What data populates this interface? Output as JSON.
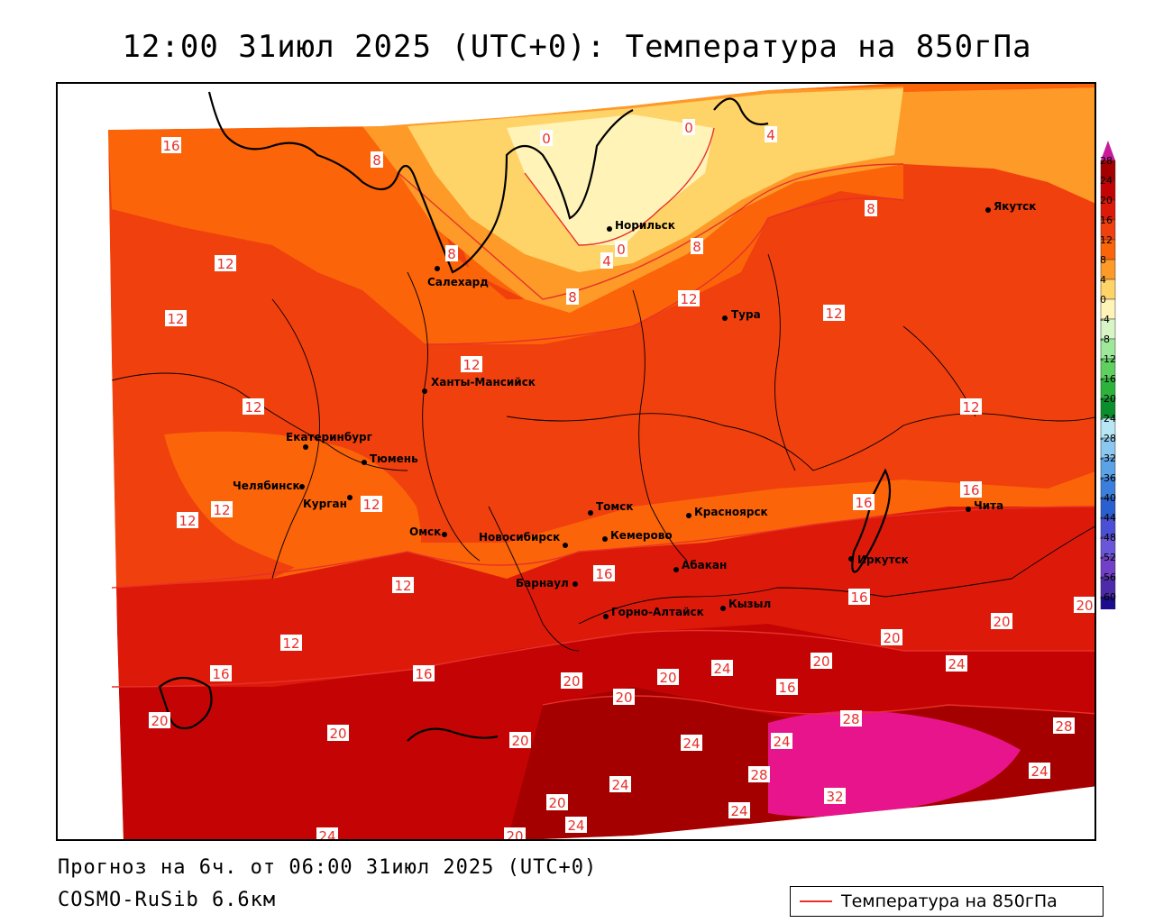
{
  "title": "12:00 31июл 2025 (UTC+0): Температура на 850гПа",
  "footer": {
    "forecast": "Прогноз на 6ч. от 06:00 31июл 2025 (UTC+0)",
    "model": "COSMO-RuSib 6.6км"
  },
  "legend": {
    "label": "Температура на 850гПа",
    "line_color": "#e8302a"
  },
  "colors": {
    "band_28": "#a50000",
    "band_24": "#c40404",
    "band_20": "#dd1a0a",
    "band_16": "#f0400e",
    "band_12": "#fb6408",
    "band_8": "#fd9a28",
    "band_4": "#fed368",
    "band_0": "#fff3b8",
    "hot_32": "#e8148c",
    "contour": "#e8302a",
    "border": "#000000"
  },
  "color_scale": {
    "labels": [
      "28",
      "24",
      "20",
      "16",
      "12",
      "8",
      "4",
      "0",
      "-4",
      "-8",
      "-12",
      "-16",
      "-20",
      "-24",
      "-28",
      "-32",
      "-36",
      "-40",
      "-44",
      "-48",
      "-52",
      "-56",
      "-60"
    ],
    "colors": [
      "#a50000",
      "#c40404",
      "#dd1a0a",
      "#f0400e",
      "#fb6408",
      "#fd9a28",
      "#fed368",
      "#fff3b8",
      "#d7f5c5",
      "#9ee89a",
      "#5fd060",
      "#2db33c",
      "#0a8f2c",
      "#b8e6f5",
      "#8cc7ef",
      "#5aa3e6",
      "#3a7fdb",
      "#2a5fd0",
      "#4a4fd6",
      "#6a56d8",
      "#7240c8",
      "#4c2aa8",
      "#1b0d8e"
    ],
    "top_color": "#c81a9a"
  },
  "cities": [
    {
      "name": "Норильск"
    },
    {
      "name": "Якутск"
    },
    {
      "name": "Салехард"
    },
    {
      "name": "Тура"
    },
    {
      "name": "Ханты-Мансийск"
    },
    {
      "name": "Екатеринбург"
    },
    {
      "name": "Тюмень"
    },
    {
      "name": "Челябинск"
    },
    {
      "name": "Курган"
    },
    {
      "name": "Томск"
    },
    {
      "name": "Красноярск"
    },
    {
      "name": "Омск"
    },
    {
      "name": "Новосибирск"
    },
    {
      "name": "Кемерово"
    },
    {
      "name": "Чита"
    },
    {
      "name": "Иркутск"
    },
    {
      "name": "Абакан"
    },
    {
      "name": "Барнаул"
    },
    {
      "name": "Кызыл"
    },
    {
      "name": "Горно-Алтайск"
    }
  ],
  "contour_labels": [
    {
      "text": "16"
    },
    {
      "text": "8"
    },
    {
      "text": "0"
    },
    {
      "text": "0"
    },
    {
      "text": "4"
    },
    {
      "text": "8"
    },
    {
      "text": "8"
    },
    {
      "text": "4"
    },
    {
      "text": "0"
    },
    {
      "text": "8"
    },
    {
      "text": "12"
    },
    {
      "text": "12"
    },
    {
      "text": "12"
    },
    {
      "text": "12"
    },
    {
      "text": "12"
    },
    {
      "text": "12"
    },
    {
      "text": "12"
    },
    {
      "text": "12"
    },
    {
      "text": "12"
    },
    {
      "text": "12"
    },
    {
      "text": "12"
    },
    {
      "text": "12"
    },
    {
      "text": "16"
    },
    {
      "text": "16"
    },
    {
      "text": "16"
    },
    {
      "text": "16"
    },
    {
      "text": "16"
    },
    {
      "text": "16"
    },
    {
      "text": "16"
    },
    {
      "text": "20"
    },
    {
      "text": "20"
    },
    {
      "text": "20"
    },
    {
      "text": "20"
    },
    {
      "text": "20"
    },
    {
      "text": "20"
    },
    {
      "text": "20"
    },
    {
      "text": "20"
    },
    {
      "text": "20"
    },
    {
      "text": "20"
    },
    {
      "text": "20"
    },
    {
      "text": "24"
    },
    {
      "text": "24"
    },
    {
      "text": "24"
    },
    {
      "text": "24"
    },
    {
      "text": "24"
    },
    {
      "text": "24"
    },
    {
      "text": "24"
    },
    {
      "text": "24"
    },
    {
      "text": "24"
    },
    {
      "text": "28"
    },
    {
      "text": "28"
    },
    {
      "text": "28"
    },
    {
      "text": "32"
    },
    {
      "text": "20"
    },
    {
      "text": "8"
    }
  ]
}
